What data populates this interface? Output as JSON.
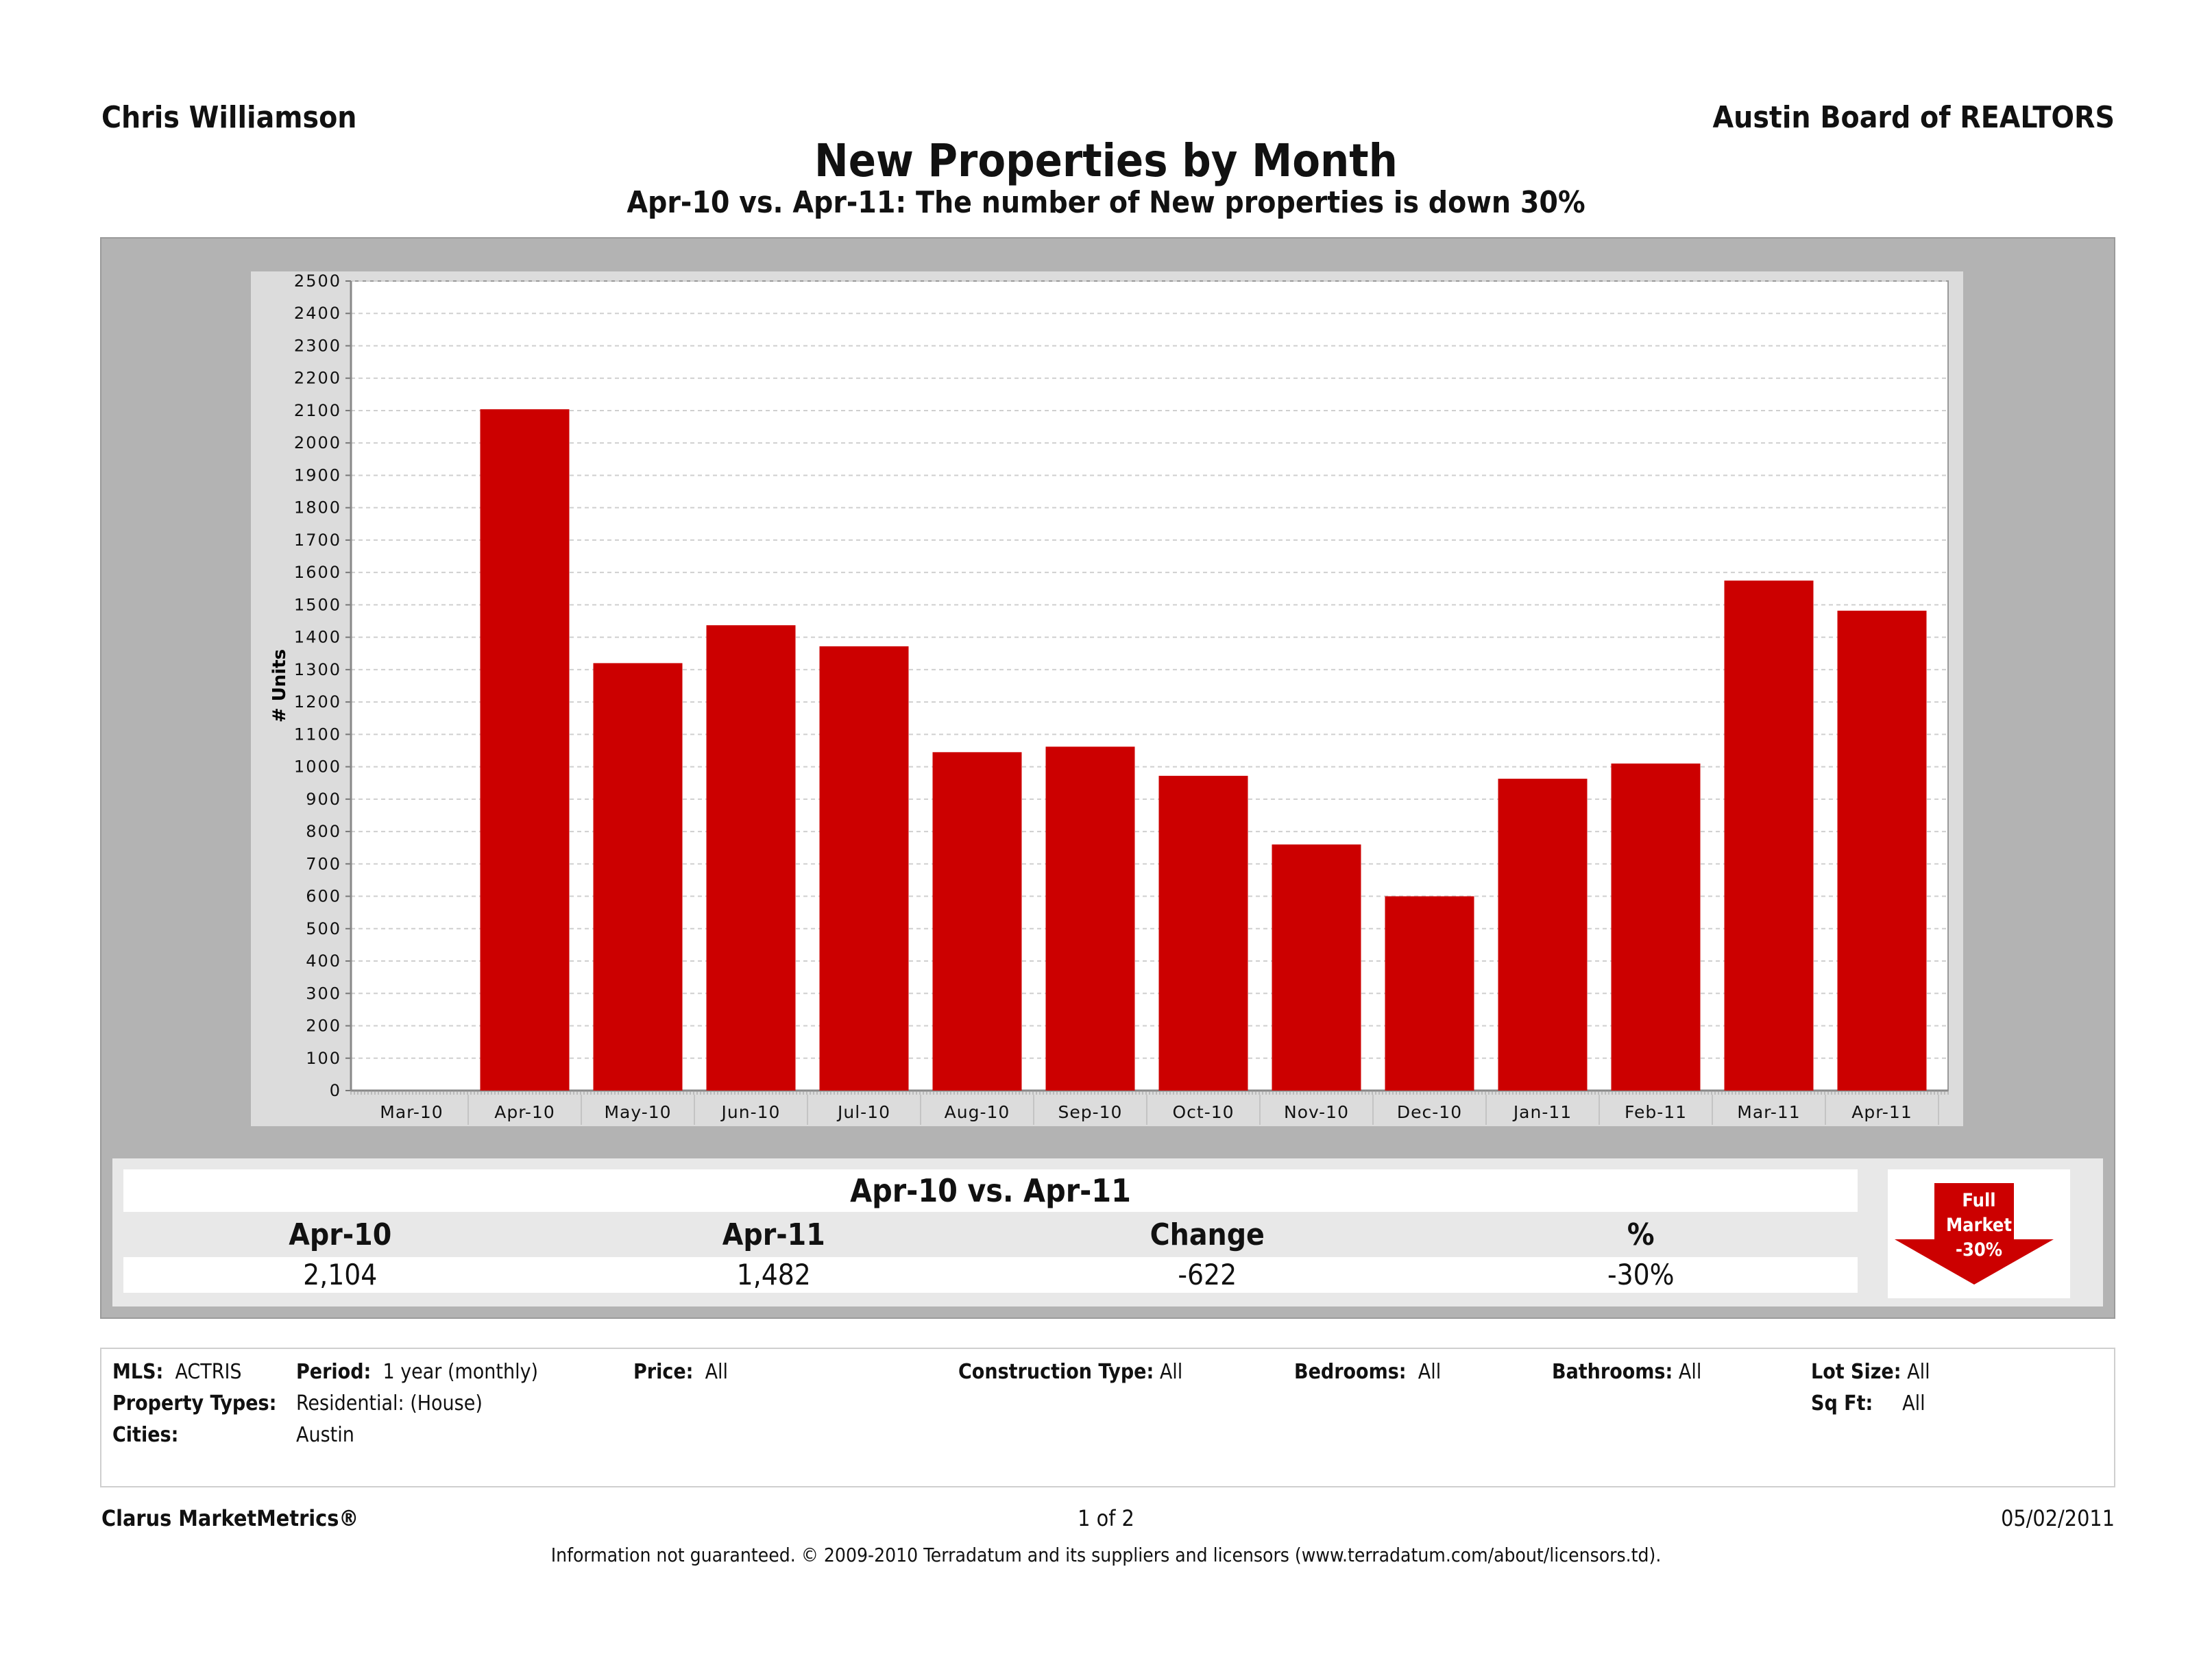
{
  "header": {
    "agent_name": "Chris Williamson",
    "board_name": "Austin Board of REALTORS",
    "title": "New Properties by Month",
    "subtitle": "Apr-10 vs. Apr-11: The number of New properties is down 30%"
  },
  "chart_data": {
    "type": "bar",
    "title": "New Properties by Month",
    "xlabel": "",
    "ylabel": "# Units",
    "ylim": [
      0,
      2500
    ],
    "yticks": [
      0,
      100,
      200,
      300,
      400,
      500,
      600,
      700,
      800,
      900,
      1000,
      1100,
      1200,
      1300,
      1400,
      1500,
      1600,
      1700,
      1800,
      1900,
      2000,
      2100,
      2200,
      2300,
      2400,
      2500
    ],
    "categories": [
      "Mar-10",
      "Apr-10",
      "May-10",
      "Jun-10",
      "Jul-10",
      "Aug-10",
      "Sep-10",
      "Oct-10",
      "Nov-10",
      "Dec-10",
      "Jan-11",
      "Feb-11",
      "Mar-11",
      "Apr-11"
    ],
    "values": [
      null,
      2104,
      1320,
      1437,
      1372,
      1045,
      1062,
      972,
      760,
      600,
      963,
      1010,
      1575,
      1482
    ],
    "grid": true,
    "bar_color": "#cc0000"
  },
  "summary": {
    "title": "Apr-10 vs. Apr-11",
    "headers": [
      "Apr-10",
      "Apr-11",
      "Change",
      "%"
    ],
    "values": [
      "2,104",
      "1,482",
      "-622",
      "-30%"
    ],
    "badge": {
      "line1": "Full",
      "line2": "Market",
      "line3": "-30%",
      "icon": "down-arrow-icon",
      "color": "#cc0000"
    }
  },
  "filters": {
    "mls_label": "MLS:",
    "mls_value": "ACTRIS",
    "period_label": "Period:",
    "period_value": "1 year (monthly)",
    "price_label": "Price:",
    "price_value": "All",
    "construction_label": "Construction Type:",
    "construction_value": "All",
    "bedrooms_label": "Bedrooms:",
    "bedrooms_value": "All",
    "bathrooms_label": "Bathrooms:",
    "bathrooms_value": "All",
    "lotsize_label": "Lot Size:",
    "lotsize_value": "All",
    "property_types_label": "Property Types:",
    "property_types_value": "Residential: (House)",
    "sqft_label": "Sq Ft:",
    "sqft_value": "All",
    "cities_label": "Cities:",
    "cities_value": "Austin"
  },
  "footer": {
    "brand": "Clarus MarketMetrics®",
    "page": "1 of 2",
    "date": "05/02/2011",
    "disclaimer": "Information not guaranteed.  © 2009-2010 Terradatum and its suppliers and licensors (www.terradatum.com/about/licensors.td)."
  }
}
